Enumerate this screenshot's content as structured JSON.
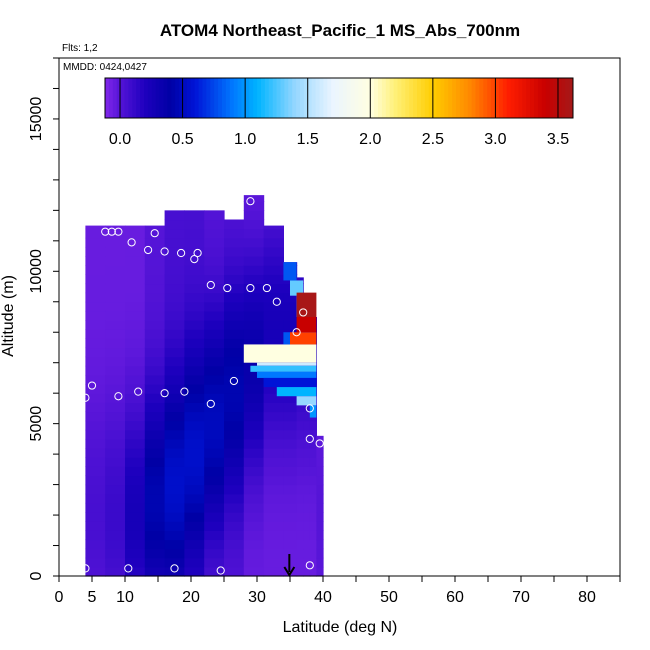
{
  "chart_data": {
    "type": "heatmap",
    "title": "ATOM4 Northeast_Pacific_1 MS_Abs_700nm",
    "flights_label": "Flts: 1,2",
    "mmdd_label": "MMDD: 0424,0427",
    "xlabel": "Latitude (deg N)",
    "ylabel": "Altitude (m)",
    "xlim": [
      0,
      85
    ],
    "ylim": [
      0,
      17000
    ],
    "x_ticks": [
      0,
      5,
      10,
      20,
      30,
      40,
      50,
      60,
      70,
      80
    ],
    "y_ticks": [
      0,
      5000,
      10000,
      15000
    ],
    "colorbar": {
      "ticks": [
        "0.0",
        "0.5",
        "1.0",
        "1.5",
        "2.0",
        "2.5",
        "3.0",
        "3.5"
      ],
      "range": [
        -0.12,
        3.62
      ]
    },
    "columns": [
      {
        "x0": 4,
        "x1": 7,
        "top": 11500,
        "base": -0.05,
        "peak": 0.05,
        "peak_alt": 2000
      },
      {
        "x0": 7,
        "x1": 10,
        "top": 11500,
        "base": -0.05,
        "peak": 0.1,
        "peak_alt": 2000
      },
      {
        "x0": 10,
        "x1": 13,
        "top": 11500,
        "base": -0.05,
        "peak": 0.25,
        "peak_alt": 2000
      },
      {
        "x0": 13,
        "x1": 16,
        "top": 11500,
        "base": 0.0,
        "peak": 0.45,
        "peak_alt": 2500
      },
      {
        "x0": 16,
        "x1": 19,
        "top": 12000,
        "base": 0.05,
        "peak": 0.55,
        "peak_alt": 3000
      },
      {
        "x0": 19,
        "x1": 22,
        "top": 12000,
        "base": 0.05,
        "peak": 0.55,
        "peak_alt": 4000
      },
      {
        "x0": 22,
        "x1": 25,
        "top": 12000,
        "base": 0.0,
        "peak": 0.5,
        "peak_alt": 5000
      },
      {
        "x0": 25,
        "x1": 28,
        "top": 11700,
        "base": 0.0,
        "peak": 0.45,
        "peak_alt": 6000
      },
      {
        "x0": 28,
        "x1": 31,
        "top": 12500,
        "base": -0.05,
        "peak": 0.35,
        "peak_alt": 7000
      },
      {
        "x0": 31,
        "x1": 34,
        "top": 11500,
        "base": -0.05,
        "peak": 0.25,
        "peak_alt": 8000
      },
      {
        "x0": 34,
        "x1": 36,
        "top": 10300,
        "base": -0.05,
        "peak": 0.25,
        "peak_alt": 8000
      },
      {
        "x0": 36,
        "x1": 37,
        "top": 9800,
        "base": -0.05,
        "peak": 0.2,
        "peak_alt": 8000
      },
      {
        "x0": 37,
        "x1": 38,
        "top": 9100,
        "base": -0.05,
        "peak": 0.2,
        "peak_alt": 8000
      },
      {
        "x0": 38,
        "x1": 39,
        "top": 8500,
        "base": -0.05,
        "peak": 0.2,
        "peak_alt": 8000
      },
      {
        "x0": 39,
        "x1": 40,
        "top": 4600,
        "base": -0.05,
        "peak": 0.0,
        "peak_alt": 2000
      }
    ],
    "features": [
      {
        "x0": 28,
        "x1": 39,
        "y0": 7000,
        "y1": 7600,
        "value": 2.0
      },
      {
        "x0": 30,
        "x1": 39,
        "y0": 6900,
        "y1": 7000,
        "value": 1.6
      },
      {
        "x0": 29,
        "x1": 39,
        "y0": 6700,
        "y1": 6900,
        "value": 1.2
      },
      {
        "x0": 30,
        "x1": 39,
        "y0": 6500,
        "y1": 6700,
        "value": 0.9
      },
      {
        "x0": 31,
        "x1": 39,
        "y0": 6200,
        "y1": 6500,
        "value": 0.6
      },
      {
        "x0": 33,
        "x1": 39,
        "y0": 5900,
        "y1": 6200,
        "value": 1.1
      },
      {
        "x0": 36,
        "x1": 39,
        "y0": 5600,
        "y1": 5900,
        "value": 1.4
      },
      {
        "x0": 34,
        "x1": 35,
        "y0": 7600,
        "y1": 8000,
        "value": 0.8
      },
      {
        "x0": 35,
        "x1": 39,
        "y0": 7600,
        "y1": 8000,
        "value": 3.0
      },
      {
        "x0": 36,
        "x1": 39,
        "y0": 8000,
        "y1": 8500,
        "value": 3.4
      },
      {
        "x0": 36,
        "x1": 38,
        "y0": 8500,
        "y1": 9200,
        "value": 2.0
      },
      {
        "x0": 35,
        "x1": 37,
        "y0": 9200,
        "y1": 9700,
        "value": 1.3
      },
      {
        "x0": 34,
        "x1": 36,
        "y0": 9700,
        "y1": 10300,
        "value": 0.8
      },
      {
        "x0": 38,
        "x1": 39,
        "y0": 5200,
        "y1": 5600,
        "value": 1.0
      },
      {
        "x0": 36,
        "x1": 39,
        "y0": 8500,
        "y1": 9300,
        "value": 3.6
      }
    ],
    "samples": [
      [
        4,
        250
      ],
      [
        10.5,
        250
      ],
      [
        17.5,
        250
      ],
      [
        24.5,
        180
      ],
      [
        38,
        350
      ],
      [
        4,
        5850
      ],
      [
        5,
        6250
      ],
      [
        9,
        5900
      ],
      [
        12,
        6050
      ],
      [
        16,
        6000
      ],
      [
        19,
        6050
      ],
      [
        23,
        5650
      ],
      [
        26.5,
        6400
      ],
      [
        7,
        11300
      ],
      [
        8,
        11300
      ],
      [
        9,
        11300
      ],
      [
        14.5,
        11250
      ],
      [
        11,
        10950
      ],
      [
        13.5,
        10700
      ],
      [
        16,
        10650
      ],
      [
        18.5,
        10600
      ],
      [
        21,
        10600
      ],
      [
        20.5,
        10400
      ],
      [
        23,
        9550
      ],
      [
        25.5,
        9450
      ],
      [
        29,
        9450
      ],
      [
        31.5,
        9450
      ],
      [
        33,
        9000
      ],
      [
        29,
        12300
      ],
      [
        32,
        12300
      ],
      [
        37,
        8650
      ],
      [
        36,
        8000
      ],
      [
        38,
        5500
      ],
      [
        38,
        4500
      ],
      [
        39.5,
        4350
      ]
    ],
    "marker": {
      "x": 34.9,
      "y": 0
    }
  }
}
